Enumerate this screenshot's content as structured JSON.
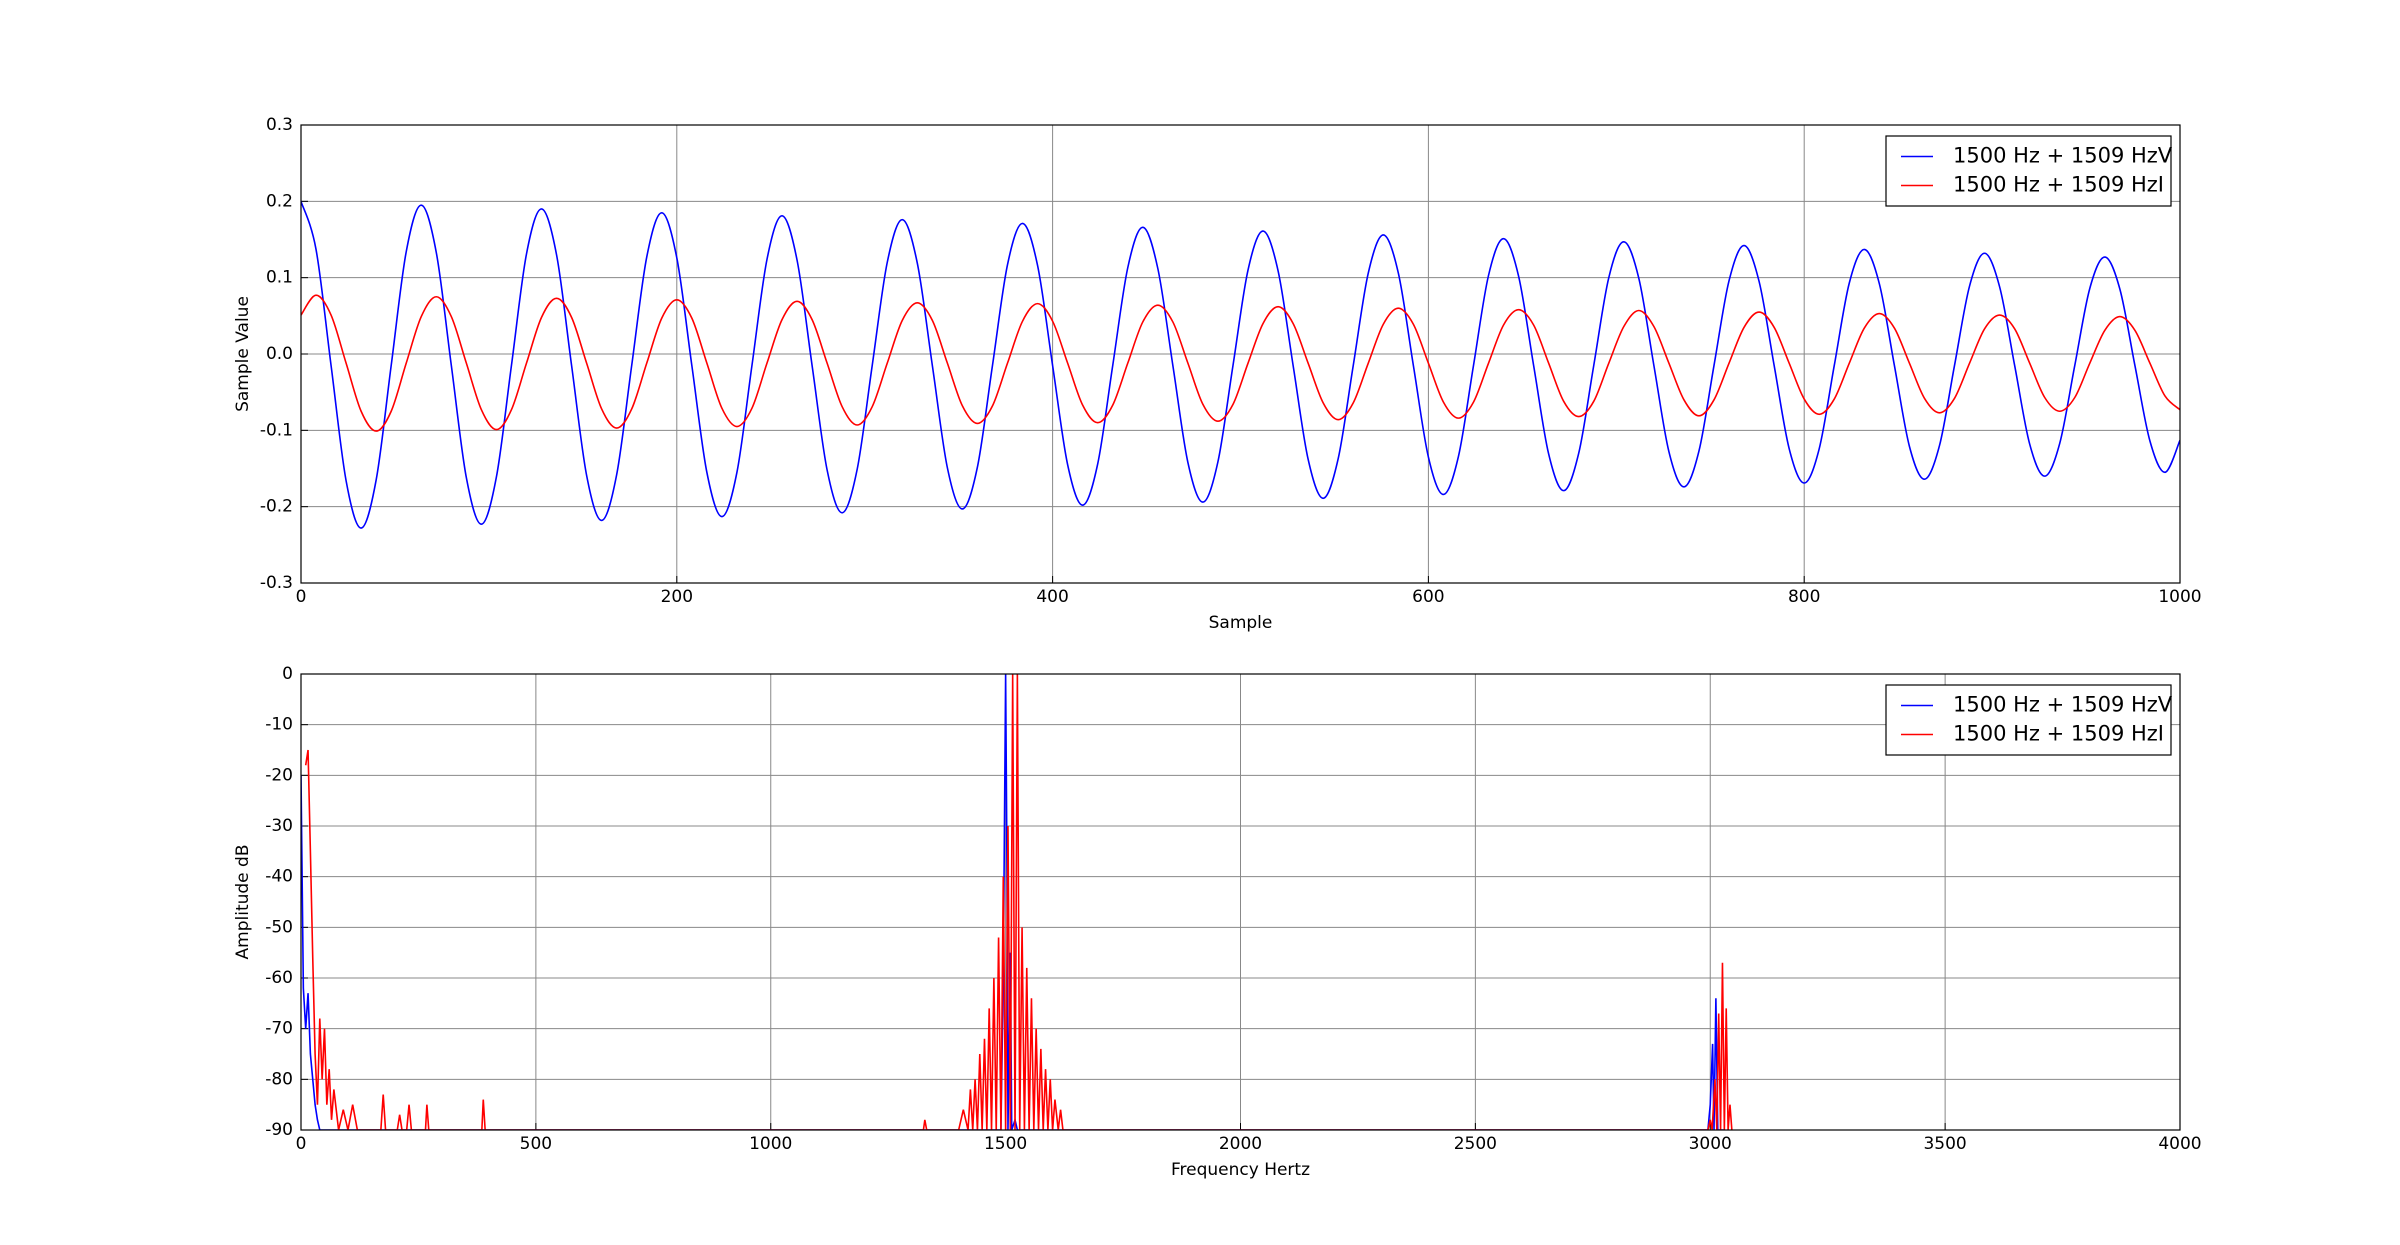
{
  "chart_data": [
    {
      "type": "line",
      "xlabel": "Sample",
      "ylabel": "Sample Value",
      "grid": true,
      "legend": "upper right",
      "xlim": [
        0,
        1000
      ],
      "ylim": [
        -0.3,
        0.3
      ],
      "xticks": [
        0,
        200,
        400,
        600,
        800,
        1000
      ],
      "yticks": [
        -0.3,
        -0.2,
        -0.1,
        {
          "value": 0,
          "label": "0.0"
        },
        0.1,
        0.2,
        0.3
      ],
      "x": [
        0,
        8,
        16,
        24,
        32,
        40,
        48,
        56,
        64,
        72,
        80,
        88,
        96,
        104,
        112,
        120,
        128,
        136,
        144,
        152,
        160,
        168,
        176,
        184,
        192,
        200,
        208,
        216,
        224,
        232,
        240,
        248,
        256,
        264,
        272,
        280,
        288,
        296,
        304,
        312,
        320,
        328,
        336,
        344,
        352,
        360,
        368,
        376,
        384,
        392,
        400,
        408,
        416,
        424,
        432,
        440,
        448,
        456,
        464,
        472,
        480,
        488,
        496,
        504,
        512,
        520,
        528,
        536,
        544,
        552,
        560,
        568,
        576,
        584,
        592,
        600,
        608,
        616,
        624,
        632,
        640,
        648,
        656,
        664,
        672,
        680,
        688,
        696,
        704,
        712,
        720,
        728,
        736,
        744,
        752,
        760,
        768,
        776,
        784,
        792,
        800,
        808,
        816,
        824,
        832,
        840,
        848,
        856,
        864,
        872,
        880,
        888,
        896,
        904,
        912,
        920,
        928,
        936,
        944,
        952,
        960,
        968,
        976,
        984,
        992,
        1000
      ],
      "series": [
        {
          "name": "1500 Hz + 1509 HzV",
          "color": "#0000ff",
          "values": [
            0.2,
            0.137,
            -0.015,
            -0.166,
            -0.228,
            -0.165,
            -0.015,
            0.134,
            0.195,
            0.133,
            -0.015,
            -0.162,
            -0.223,
            -0.161,
            -0.015,
            0.131,
            0.19,
            0.13,
            -0.015,
            -0.159,
            -0.218,
            -0.158,
            -0.015,
            0.127,
            0.185,
            0.126,
            -0.015,
            -0.155,
            -0.213,
            -0.155,
            -0.015,
            0.124,
            0.181,
            0.123,
            -0.015,
            -0.152,
            -0.208,
            -0.151,
            -0.015,
            0.12,
            0.176,
            0.119,
            -0.015,
            -0.149,
            -0.203,
            -0.148,
            -0.015,
            0.117,
            0.171,
            0.116,
            -0.015,
            -0.145,
            -0.198,
            -0.144,
            -0.015,
            0.113,
            0.166,
            0.112,
            -0.015,
            -0.142,
            -0.194,
            -0.141,
            -0.015,
            0.11,
            0.161,
            0.109,
            -0.015,
            -0.138,
            -0.189,
            -0.137,
            -0.015,
            0.106,
            0.156,
            0.106,
            -0.015,
            -0.135,
            -0.184,
            -0.134,
            -0.015,
            0.103,
            0.151,
            0.102,
            -0.015,
            -0.131,
            -0.179,
            -0.13,
            -0.015,
            0.1,
            0.147,
            0.099,
            -0.015,
            -0.128,
            -0.174,
            -0.127,
            -0.015,
            0.096,
            0.142,
            0.095,
            -0.015,
            -0.124,
            -0.169,
            -0.124,
            -0.015,
            0.093,
            0.137,
            0.092,
            -0.015,
            -0.121,
            -0.164,
            -0.12,
            -0.015,
            0.089,
            0.132,
            0.088,
            -0.015,
            -0.118,
            -0.16,
            -0.117,
            -0.015,
            0.086,
            0.127,
            0.085,
            -0.015,
            -0.114,
            -0.155,
            -0.113
          ]
        },
        {
          "name": "1500 Hz + 1509 HzI",
          "color": "#ff0000",
          "values": [
            0.051,
            0.077,
            0.051,
            -0.012,
            -0.075,
            -0.101,
            -0.075,
            -0.012,
            0.049,
            0.075,
            0.049,
            -0.012,
            -0.073,
            -0.099,
            -0.073,
            -0.012,
            0.048,
            0.073,
            0.048,
            -0.012,
            -0.072,
            -0.097,
            -0.072,
            -0.012,
            0.047,
            0.071,
            0.047,
            -0.012,
            -0.071,
            -0.095,
            -0.071,
            -0.012,
            0.045,
            0.069,
            0.045,
            -0.012,
            -0.069,
            -0.093,
            -0.069,
            -0.012,
            0.044,
            0.067,
            0.044,
            -0.012,
            -0.068,
            -0.091,
            -0.068,
            -0.012,
            0.043,
            0.066,
            0.043,
            -0.012,
            -0.067,
            -0.09,
            -0.067,
            -0.012,
            0.042,
            0.064,
            0.042,
            -0.012,
            -0.066,
            -0.088,
            -0.066,
            -0.012,
            0.04,
            0.062,
            0.04,
            -0.012,
            -0.064,
            -0.086,
            -0.064,
            -0.012,
            0.039,
            0.06,
            0.039,
            -0.012,
            -0.063,
            -0.084,
            -0.063,
            -0.012,
            0.038,
            0.058,
            0.038,
            -0.012,
            -0.062,
            -0.082,
            -0.062,
            -0.012,
            0.036,
            0.057,
            0.036,
            -0.012,
            -0.06,
            -0.081,
            -0.06,
            -0.012,
            0.035,
            0.055,
            0.035,
            -0.012,
            -0.059,
            -0.079,
            -0.059,
            -0.012,
            0.034,
            0.053,
            0.034,
            -0.012,
            -0.058,
            -0.077,
            -0.058,
            -0.012,
            0.033,
            0.051,
            0.033,
            -0.012,
            -0.057,
            -0.075,
            -0.057,
            -0.012,
            0.031,
            0.049,
            0.031,
            -0.012,
            -0.055,
            -0.073
          ]
        }
      ]
    },
    {
      "type": "line",
      "xlabel": "Frequency Hertz",
      "ylabel": "Amplitude dB",
      "grid": true,
      "legend": "upper right",
      "xlim": [
        0,
        4000
      ],
      "ylim": [
        -90,
        0
      ],
      "xticks": [
        0,
        500,
        1000,
        1500,
        2000,
        2500,
        3000,
        3500,
        4000
      ],
      "yticks": [
        -90,
        -80,
        -70,
        -60,
        -50,
        -40,
        -30,
        -20,
        -10,
        0
      ],
      "series": [
        {
          "name": "1500 Hz + 1509 HzV",
          "color": "#0000ff",
          "x": [
            0,
            5,
            10,
            15,
            20,
            25,
            30,
            35,
            40,
            1490,
            1495,
            1500,
            1503,
            1505,
            1510,
            1513,
            1520,
            1525,
            2995,
            3000,
            3005,
            3008,
            3012,
            3016,
            3030
          ],
          "values": [
            -20,
            -62,
            -70,
            -63,
            -75,
            -80,
            -85,
            -88,
            -90,
            -90,
            -60,
            0,
            -40,
            -90,
            -55,
            -90,
            -88,
            -90,
            -90,
            -85,
            -73,
            -90,
            -64,
            -90,
            -90
          ]
        },
        {
          "name": "1500 Hz + 1509 HzI",
          "color": "#ff0000",
          "x": [
            10,
            15,
            20,
            25,
            30,
            35,
            40,
            45,
            50,
            55,
            60,
            65,
            70,
            80,
            90,
            100,
            110,
            120,
            170,
            175,
            180,
            205,
            210,
            215,
            225,
            230,
            235,
            265,
            268,
            272,
            385,
            388,
            392,
            1325,
            1328,
            1332,
            1400,
            1410,
            1420,
            1425,
            1430,
            1435,
            1440,
            1445,
            1450,
            1455,
            1460,
            1465,
            1470,
            1475,
            1480,
            1485,
            1490,
            1495,
            1500,
            1505,
            1510,
            1515,
            1520,
            1525,
            1530,
            1535,
            1540,
            1545,
            1550,
            1555,
            1560,
            1565,
            1570,
            1575,
            1580,
            1585,
            1590,
            1595,
            1600,
            1605,
            1612,
            1617,
            1622,
            2995,
            3000,
            3004,
            3010,
            3014,
            3018,
            3022,
            3026,
            3030,
            3034,
            3038,
            3042,
            3046
          ],
          "values": [
            -18,
            -15,
            -35,
            -56,
            -75,
            -85,
            -68,
            -80,
            -70,
            -85,
            -78,
            -88,
            -82,
            -90,
            -86,
            -90,
            -85,
            -90,
            -90,
            -83,
            -90,
            -90,
            -87,
            -90,
            -90,
            -85,
            -90,
            -90,
            -85,
            -90,
            -90,
            -84,
            -90,
            -90,
            -88,
            -90,
            -90,
            -86,
            -90,
            -82,
            -90,
            -80,
            -90,
            -75,
            -90,
            -72,
            -90,
            -66,
            -90,
            -60,
            -90,
            -52,
            -90,
            -40,
            -90,
            -30,
            -90,
            0,
            -90,
            0,
            -90,
            -50,
            -90,
            -58,
            -90,
            -64,
            -90,
            -70,
            -90,
            -74,
            -90,
            -78,
            -90,
            -80,
            -90,
            -84,
            -90,
            -86,
            -90,
            -90,
            -88,
            -90,
            -80,
            -90,
            -67,
            -90,
            -57,
            -90,
            -66,
            -90,
            -85,
            -90
          ]
        }
      ]
    }
  ]
}
